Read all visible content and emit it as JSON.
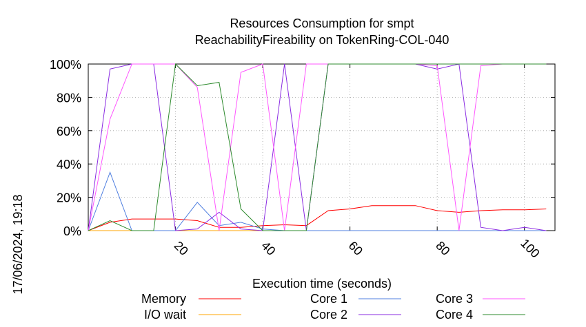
{
  "chart_data": {
    "type": "line",
    "title": "Resources Consumption for smpt",
    "subtitle": "ReachabilityFireability on TokenRing-COL-040",
    "xlabel": "Execution time (seconds)",
    "ylabel": "",
    "side_label": "17/06/2024, 19:18",
    "xlim": [
      0,
      107
    ],
    "ylim": [
      0,
      100
    ],
    "x_ticks": [
      20,
      40,
      60,
      80,
      100
    ],
    "x_tick_labels": [
      "20",
      "40",
      "60",
      "80",
      "100"
    ],
    "y_ticks": [
      0,
      20,
      40,
      60,
      80,
      100
    ],
    "y_tick_labels": [
      "0%",
      "20%",
      "40%",
      "60%",
      "80%",
      "100%"
    ],
    "grid": "dotted",
    "legend": "bottom",
    "series": [
      {
        "name": "Memory",
        "color": "#ff0000",
        "points": [
          [
            0,
            0
          ],
          [
            5,
            5
          ],
          [
            10,
            7
          ],
          [
            15,
            7
          ],
          [
            20,
            7
          ],
          [
            25,
            6
          ],
          [
            30,
            2
          ],
          [
            35,
            2
          ],
          [
            40,
            3
          ],
          [
            45,
            3.5
          ],
          [
            50,
            3
          ],
          [
            55,
            12
          ],
          [
            60,
            13
          ],
          [
            65,
            15
          ],
          [
            70,
            15
          ],
          [
            75,
            15
          ],
          [
            80,
            12
          ],
          [
            85,
            11
          ],
          [
            90,
            12
          ],
          [
            95,
            12.5
          ],
          [
            100,
            12.5
          ],
          [
            105,
            13
          ]
        ]
      },
      {
        "name": "I/O wait",
        "color": "#ffa500",
        "points": [
          [
            0,
            0
          ],
          [
            5,
            0
          ],
          [
            10,
            0
          ],
          [
            15,
            0
          ],
          [
            20,
            0
          ],
          [
            25,
            0
          ],
          [
            30,
            0
          ],
          [
            35,
            0
          ],
          [
            40,
            0
          ],
          [
            45,
            0
          ],
          [
            50,
            0
          ],
          [
            55,
            0
          ],
          [
            60,
            0
          ],
          [
            65,
            0
          ],
          [
            70,
            0
          ],
          [
            75,
            0
          ],
          [
            80,
            0
          ],
          [
            85,
            0
          ],
          [
            90,
            0
          ],
          [
            95,
            0
          ],
          [
            100,
            0
          ],
          [
            105,
            0
          ]
        ]
      },
      {
        "name": "Core 1",
        "color": "#4f7fe0",
        "points": [
          [
            0,
            0
          ],
          [
            5,
            35
          ],
          [
            10,
            0
          ],
          [
            15,
            0
          ],
          [
            20,
            0
          ],
          [
            25,
            17
          ],
          [
            30,
            3
          ],
          [
            35,
            5
          ],
          [
            40,
            1
          ],
          [
            45,
            0
          ],
          [
            50,
            0
          ],
          [
            55,
            0
          ],
          [
            60,
            0
          ],
          [
            65,
            0
          ],
          [
            70,
            0
          ],
          [
            75,
            0
          ],
          [
            80,
            0
          ],
          [
            85,
            0
          ],
          [
            90,
            0
          ],
          [
            95,
            0
          ],
          [
            100,
            0
          ],
          [
            105,
            0
          ]
        ]
      },
      {
        "name": "Core 2",
        "color": "#8a2be2",
        "points": [
          [
            0,
            0
          ],
          [
            5,
            97
          ],
          [
            10,
            100
          ],
          [
            15,
            100
          ],
          [
            20,
            0
          ],
          [
            25,
            1
          ],
          [
            30,
            11
          ],
          [
            35,
            1
          ],
          [
            40,
            0
          ],
          [
            45,
            100
          ],
          [
            50,
            0
          ],
          [
            55,
            100
          ],
          [
            60,
            100
          ],
          [
            65,
            100
          ],
          [
            70,
            100
          ],
          [
            75,
            100
          ],
          [
            80,
            97
          ],
          [
            85,
            100
          ],
          [
            90,
            2
          ],
          [
            95,
            0
          ],
          [
            100,
            2
          ],
          [
            105,
            0
          ]
        ]
      },
      {
        "name": "Core 3",
        "color": "#ff55ff",
        "points": [
          [
            0,
            0
          ],
          [
            5,
            67
          ],
          [
            10,
            100
          ],
          [
            15,
            100
          ],
          [
            20,
            100
          ],
          [
            25,
            86
          ],
          [
            30,
            0
          ],
          [
            35,
            95
          ],
          [
            40,
            100
          ],
          [
            45,
            0
          ],
          [
            50,
            100
          ],
          [
            55,
            100
          ],
          [
            60,
            100
          ],
          [
            65,
            100
          ],
          [
            70,
            100
          ],
          [
            75,
            100
          ],
          [
            80,
            99
          ],
          [
            85,
            0
          ],
          [
            90,
            99
          ],
          [
            95,
            100
          ],
          [
            100,
            100
          ],
          [
            105,
            100
          ]
        ]
      },
      {
        "name": "Core 4",
        "color": "#2e8b2e",
        "points": [
          [
            0,
            0
          ],
          [
            5,
            6
          ],
          [
            10,
            0
          ],
          [
            15,
            0
          ],
          [
            20,
            100
          ],
          [
            25,
            87
          ],
          [
            30,
            89
          ],
          [
            35,
            13
          ],
          [
            40,
            0
          ],
          [
            45,
            0
          ],
          [
            50,
            0
          ],
          [
            55,
            100
          ],
          [
            60,
            100
          ],
          [
            65,
            100
          ],
          [
            70,
            100
          ],
          [
            75,
            100
          ],
          [
            80,
            100
          ],
          [
            85,
            100
          ],
          [
            90,
            100
          ],
          [
            95,
            100
          ],
          [
            100,
            100
          ],
          [
            105,
            100
          ]
        ]
      }
    ]
  }
}
